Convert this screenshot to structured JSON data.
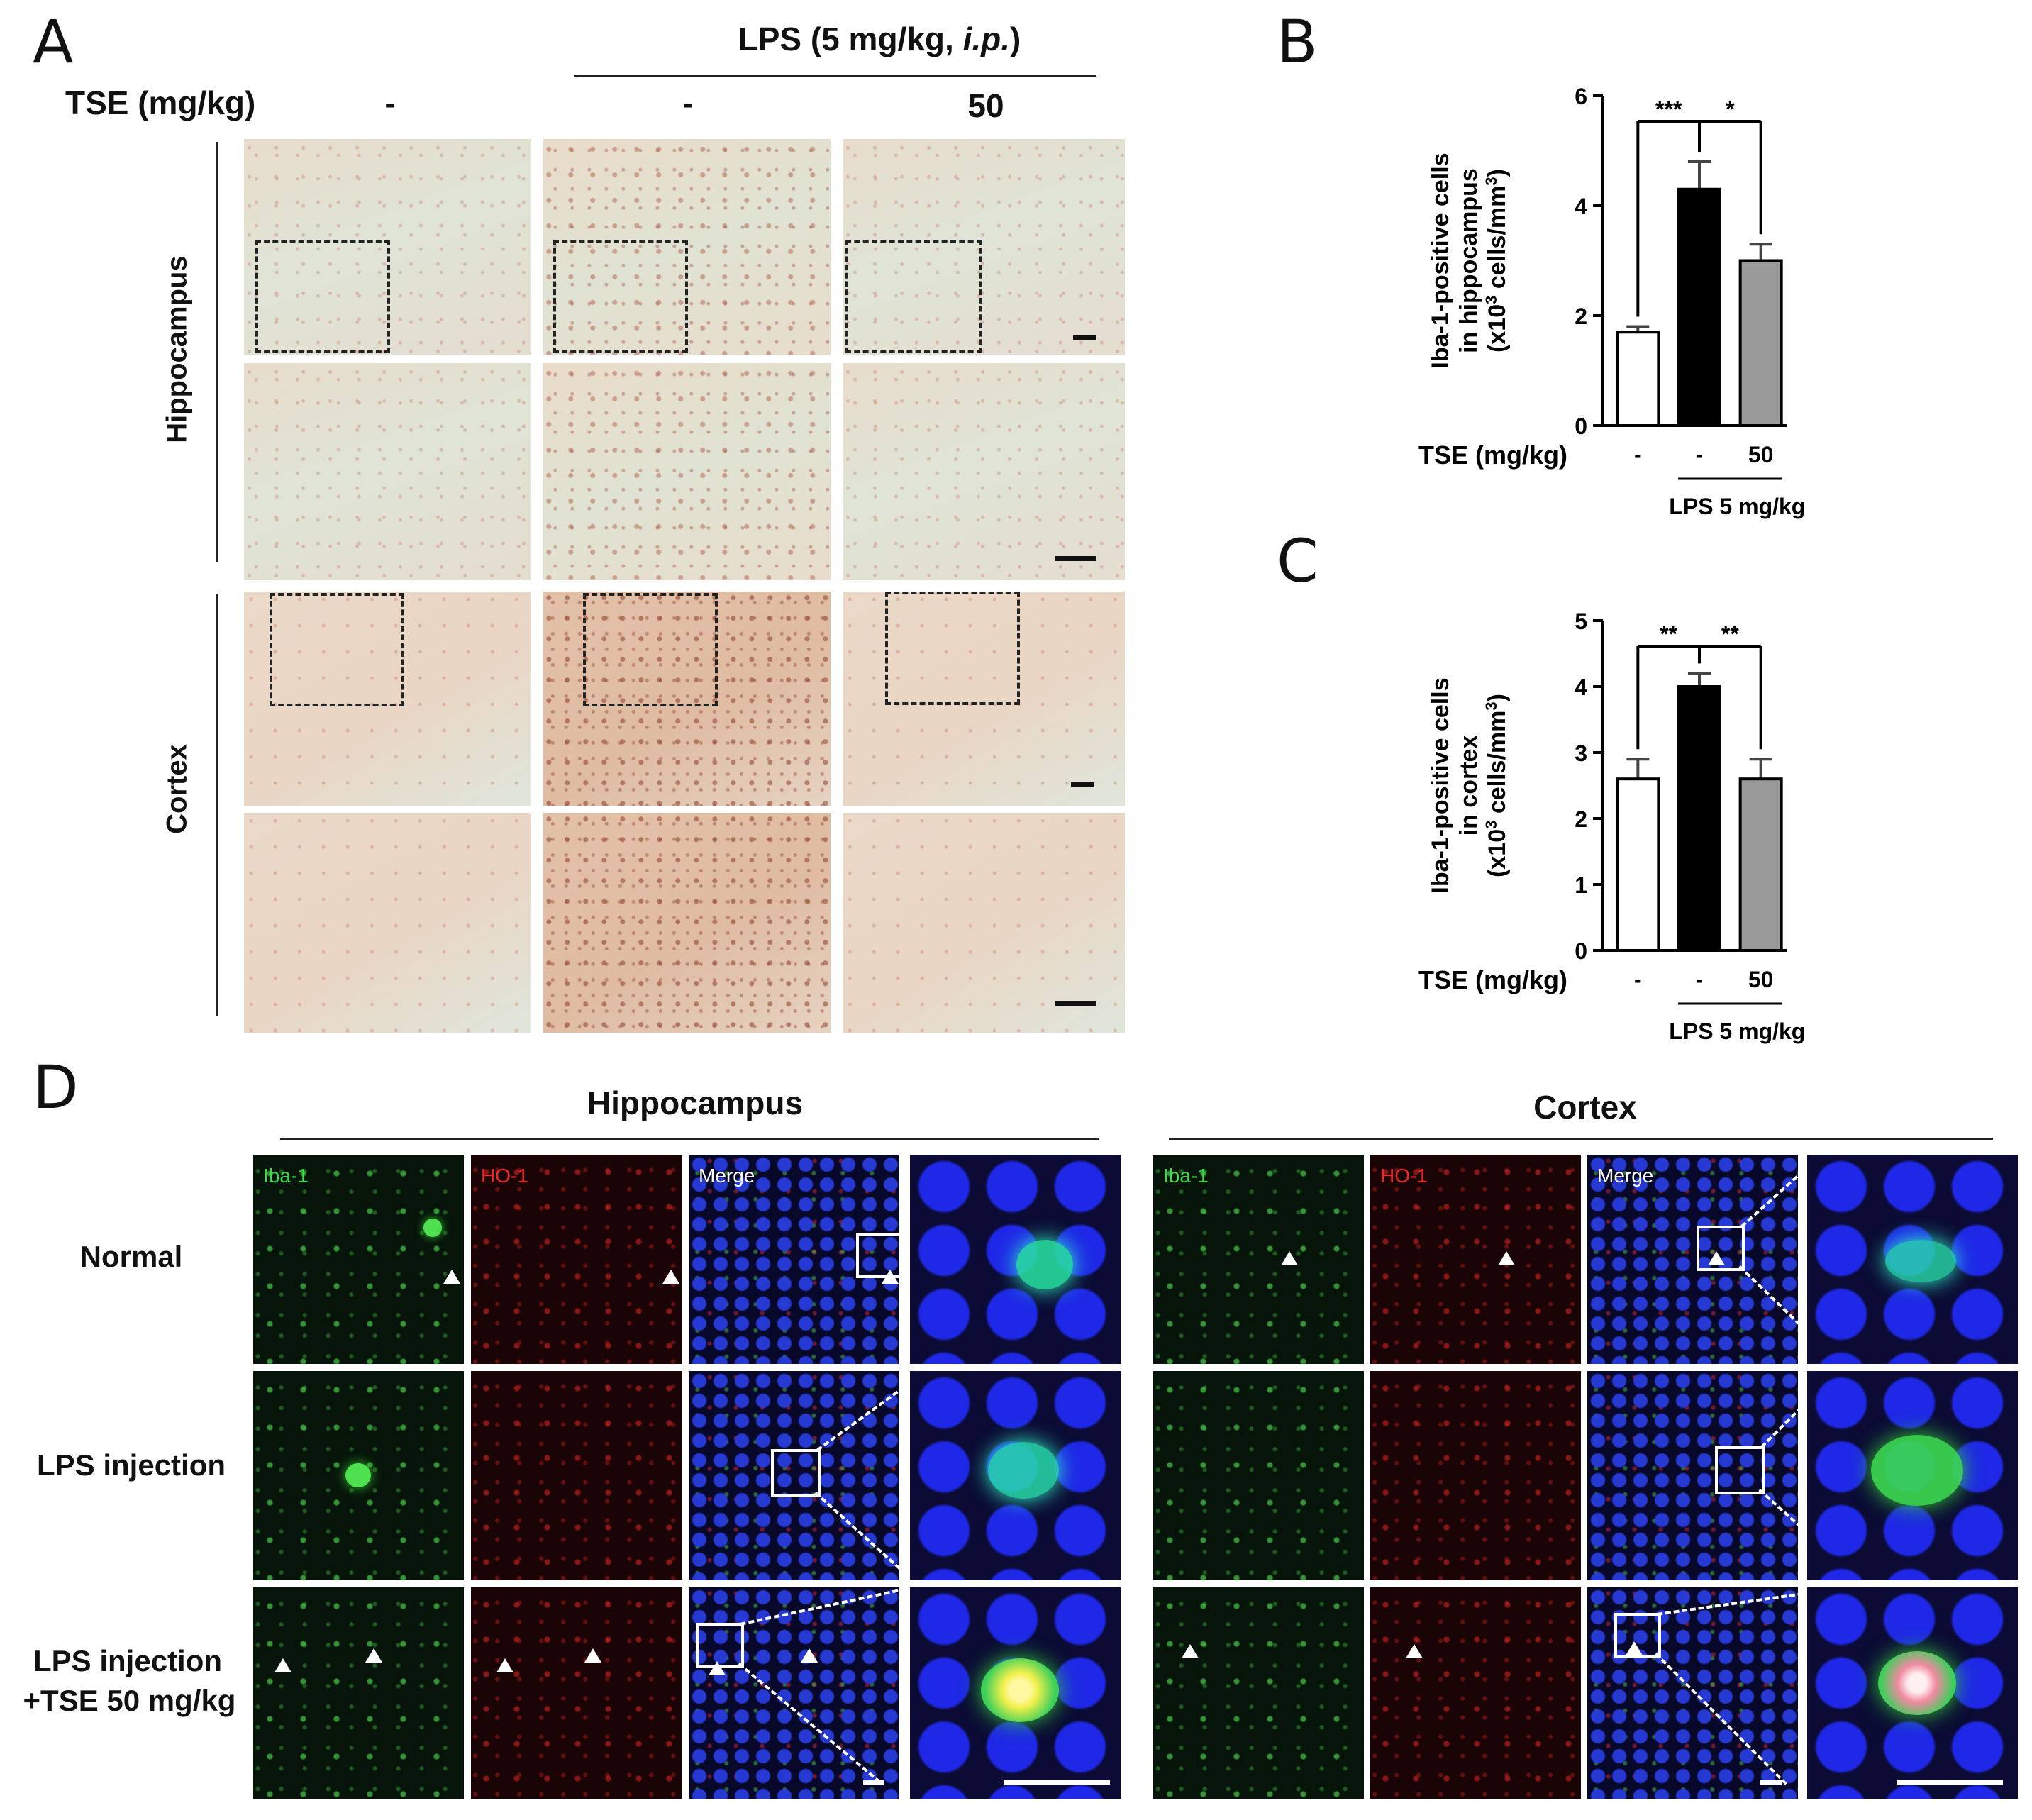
{
  "panels": {
    "A": "A",
    "B": "B",
    "C": "C",
    "D": "D"
  },
  "panel_a": {
    "lps_header": "LPS (5 mg/kg, ",
    "lps_header_ip": "i.p.",
    "lps_header_end": ")",
    "tse_label": "TSE (mg/kg)",
    "tse_values": [
      "-",
      "-",
      "50"
    ],
    "regions": [
      "Hippocampus",
      "Cortex"
    ]
  },
  "panel_d": {
    "regions": [
      "Hippocampus",
      "Cortex"
    ],
    "channels": [
      "Iba-1",
      "HO-1",
      "Merge"
    ],
    "rows": [
      "Normal",
      "LPS injection",
      "LPS injection",
      "+TSE 50 mg/kg"
    ]
  },
  "chart_data": [
    {
      "type": "bar",
      "panel": "B",
      "ylabel_lines": [
        "Iba-1-positive cells",
        "in hippocampus",
        "(x10",
        "3",
        " cells/mm",
        "3",
        ")"
      ],
      "ylim": [
        0,
        6
      ],
      "yticks": [
        0,
        2,
        4,
        6
      ],
      "categories": [
        "-",
        "-",
        "50"
      ],
      "values": [
        1.7,
        4.3,
        3.0
      ],
      "errors": [
        0.1,
        0.5,
        0.3
      ],
      "bar_colors": [
        "#ffffff",
        "#000000",
        "#9a9a9a"
      ],
      "xlabel_row": "TSE (mg/kg)",
      "group_label": "LPS 5 mg/kg",
      "significance": [
        "***",
        "*"
      ]
    },
    {
      "type": "bar",
      "panel": "C",
      "ylabel_lines": [
        "Iba-1-positive cells",
        "in cortex",
        "(x10",
        "3",
        " cells/mm",
        "3",
        ")"
      ],
      "ylim": [
        0,
        5
      ],
      "yticks": [
        0,
        1,
        2,
        3,
        4,
        5
      ],
      "categories": [
        "-",
        "-",
        "50"
      ],
      "values": [
        2.6,
        4.0,
        2.6
      ],
      "errors": [
        0.3,
        0.2,
        0.3
      ],
      "bar_colors": [
        "#ffffff",
        "#000000",
        "#9a9a9a"
      ],
      "xlabel_row": "TSE (mg/kg)",
      "group_label": "LPS 5 mg/kg",
      "significance": [
        "**",
        "**"
      ]
    }
  ]
}
